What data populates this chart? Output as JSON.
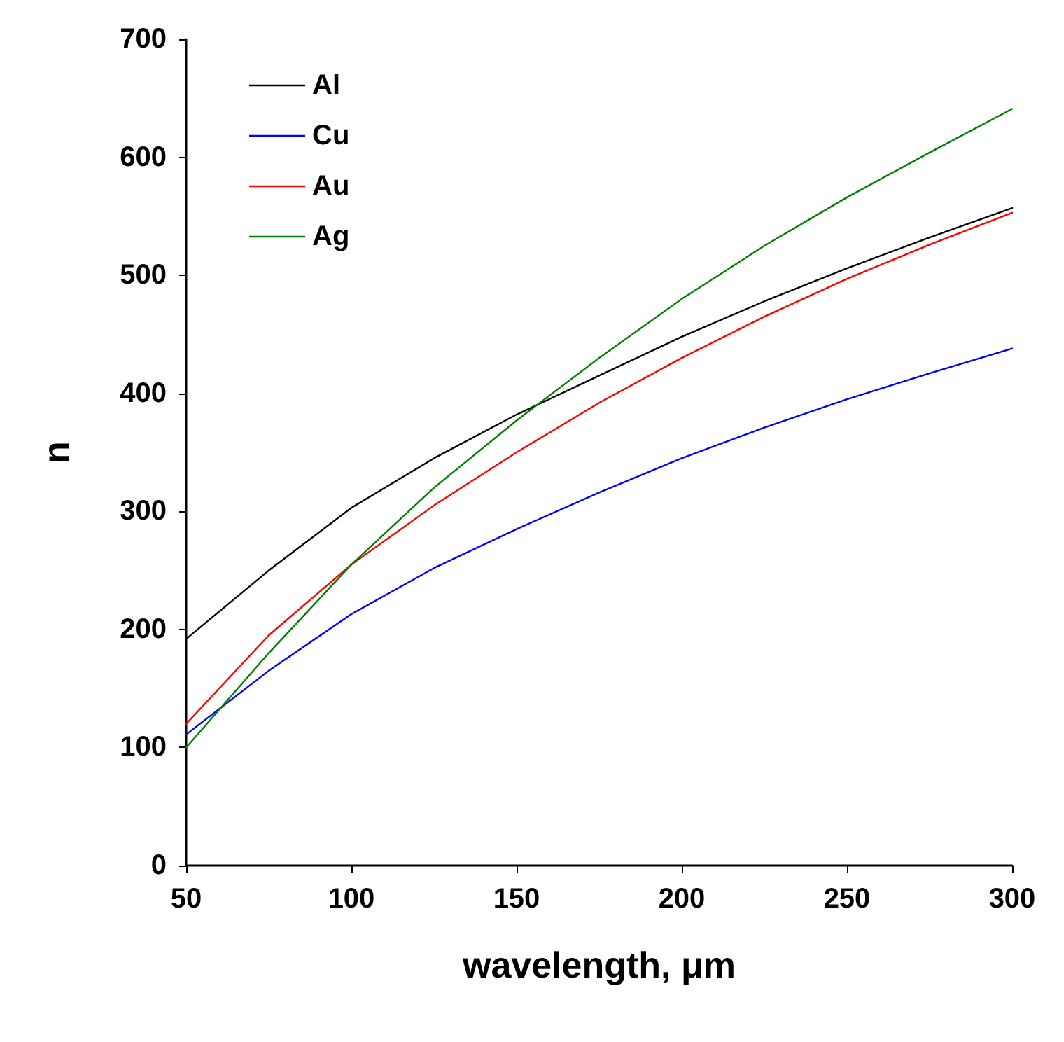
{
  "chart_data": {
    "type": "line",
    "xlabel": "wavelength, μm",
    "ylabel": "n",
    "x": [
      50,
      75,
      100,
      125,
      150,
      175,
      200,
      225,
      250,
      275,
      300
    ],
    "series": [
      {
        "name": "Al",
        "color": "#000000",
        "values": [
          192,
          250,
          303,
          345,
          382,
          415,
          448,
          478,
          506,
          532,
          557
        ]
      },
      {
        "name": "Cu",
        "color": "#0000ff",
        "values": [
          111,
          165,
          213,
          252,
          285,
          316,
          345,
          371,
          395,
          417,
          438
        ]
      },
      {
        "name": "Au",
        "color": "#ff0000",
        "values": [
          120,
          195,
          255,
          305,
          350,
          392,
          430,
          465,
          497,
          526,
          553
        ]
      },
      {
        "name": "Ag",
        "color": "#008000",
        "values": [
          100,
          180,
          255,
          320,
          377,
          430,
          480,
          525,
          566,
          604,
          641
        ]
      }
    ],
    "xlim": [
      50,
      300
    ],
    "xticks": [
      50,
      100,
      150,
      200,
      250,
      300
    ],
    "ylim": [
      0,
      700
    ],
    "yticks": [
      0,
      100,
      200,
      300,
      400,
      500,
      600,
      700
    ],
    "grid": false,
    "legend": "top left",
    "marker": "none",
    "line_style": "solid"
  }
}
